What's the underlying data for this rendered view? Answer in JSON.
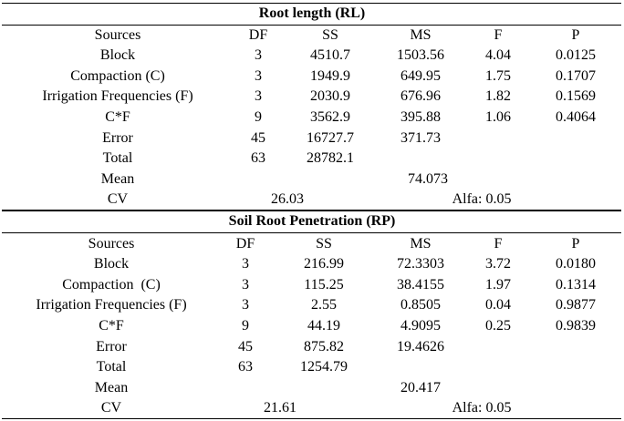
{
  "sections": [
    {
      "title": "Root length (RL)",
      "headers": [
        "Sources",
        "DF",
        "SS",
        "MS",
        "F",
        "P"
      ],
      "rows": [
        [
          "Block",
          "3",
          "4510.7",
          "1503.56",
          "4.04",
          "0.0125"
        ],
        [
          "Compaction (C)",
          "3",
          "1949.9",
          "649.95",
          "1.75",
          "0.1707"
        ],
        [
          "Irrigation Frequencies (F)",
          "3",
          "2030.9",
          "676.96",
          "1.82",
          "0.1569"
        ],
        [
          "C*F",
          "9",
          "3562.9",
          "395.88",
          "1.06",
          "0.4064"
        ],
        [
          "Error",
          "45",
          "16727.7",
          "371.73",
          "",
          ""
        ],
        [
          "Total",
          "63",
          "28782.1",
          "",
          "",
          ""
        ]
      ],
      "mean_label": "Mean",
      "mean_value": "74.073",
      "cv_label": "CV",
      "cv_value": "26.03",
      "alfa": "Alfa: 0.05"
    },
    {
      "title": "Soil Root Penetration (RP)",
      "headers": [
        "Sources",
        "DF",
        "SS",
        "MS",
        "F",
        "P"
      ],
      "rows": [
        [
          "Block",
          "3",
          "216.99",
          "72.3303",
          "3.72",
          "0.0180"
        ],
        [
          "Compaction  (C)",
          "3",
          "115.25",
          "38.4155",
          "1.97",
          "0.1314"
        ],
        [
          "Irrigation Frequencies (F)",
          "3",
          "2.55",
          "0.8505",
          "0.04",
          "0.9877"
        ],
        [
          "C*F",
          "9",
          "44.19",
          "4.9095",
          "0.25",
          "0.9839"
        ],
        [
          "Error",
          "45",
          "875.82",
          "19.4626",
          "",
          ""
        ],
        [
          "Total",
          "63",
          "1254.79",
          "",
          "",
          ""
        ]
      ],
      "mean_label": "Mean",
      "mean_value": "20.417",
      "cv_label": "CV",
      "cv_value": "21.61",
      "alfa": "Alfa: 0.05"
    }
  ]
}
